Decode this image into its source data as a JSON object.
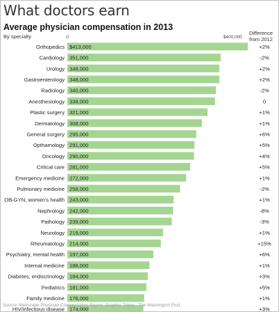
{
  "header": {
    "title": "What doctors earn",
    "subtitle": "Average physician compensation in 2013",
    "by_label": "By specialty",
    "diff_header": "Difference from 2012"
  },
  "source": "Source: Medscape Physician Compensation Report. Graphic: Tobey · The Washington Post.",
  "colors": {
    "bar": "#a5d592",
    "bar_edge": "#8cc579",
    "text": "#222222"
  },
  "chart_data": {
    "type": "bar",
    "orientation": "horizontal",
    "title": "Average physician compensation in 2013",
    "subtitle": "By specialty",
    "xlim": [
      0,
      413000
    ],
    "x_ticks": [
      {
        "value": 0,
        "label": "0"
      },
      {
        "value": 400000,
        "label": "$400,000"
      }
    ],
    "grid": false,
    "categories": [
      "Orthopedics",
      "Cardiology",
      "Urology",
      "Gastroenterology",
      "Radiology",
      "Anesthesiology",
      "Plastic surgery",
      "Dermatology",
      "General surgery",
      "Opthamology",
      "Oncology",
      "Critical care",
      "Emergency medicine",
      "Pulmonary medicine",
      "OB-GYN, women's health",
      "Nephrology",
      "Pathology",
      "Neurology",
      "Rheumatology",
      "Psychiatry, mental health",
      "Internal medicine",
      "Diabetes, endocrinology",
      "Pediatrics",
      "Family medicine",
      "HIV/infectious disease"
    ],
    "values": [
      413000,
      351000,
      348000,
      348000,
      340000,
      338000,
      321000,
      308000,
      295000,
      291000,
      290000,
      281000,
      272000,
      258000,
      243000,
      242000,
      239000,
      219000,
      214000,
      197000,
      188000,
      184000,
      181000,
      176000,
      174000
    ],
    "value_labels": [
      "$413,000",
      "351,000",
      "348,000",
      "348,000",
      "340,000",
      "338,000",
      "321,000",
      "308,000",
      "295,000",
      "291,000",
      "290,000",
      "281,000",
      "272,000",
      "258,000",
      "243,000",
      "242,000",
      "239,000",
      "219,000",
      "214,000",
      "197,000",
      "188,000",
      "184,000",
      "181,000",
      "176,000",
      "174,000"
    ],
    "diff_labels": [
      "+2%",
      "-2%",
      "+2%",
      "+2%",
      "-2%",
      "0",
      "+1%",
      "+1%",
      "+6%",
      "+5%",
      "+4%",
      "+5%",
      "+1%",
      "-2%",
      "+1%",
      "-8%",
      "-3%",
      "+1%",
      "+15%",
      "+6%",
      "+1%",
      "+3%",
      "+5%",
      "+1%",
      "+3%"
    ]
  }
}
